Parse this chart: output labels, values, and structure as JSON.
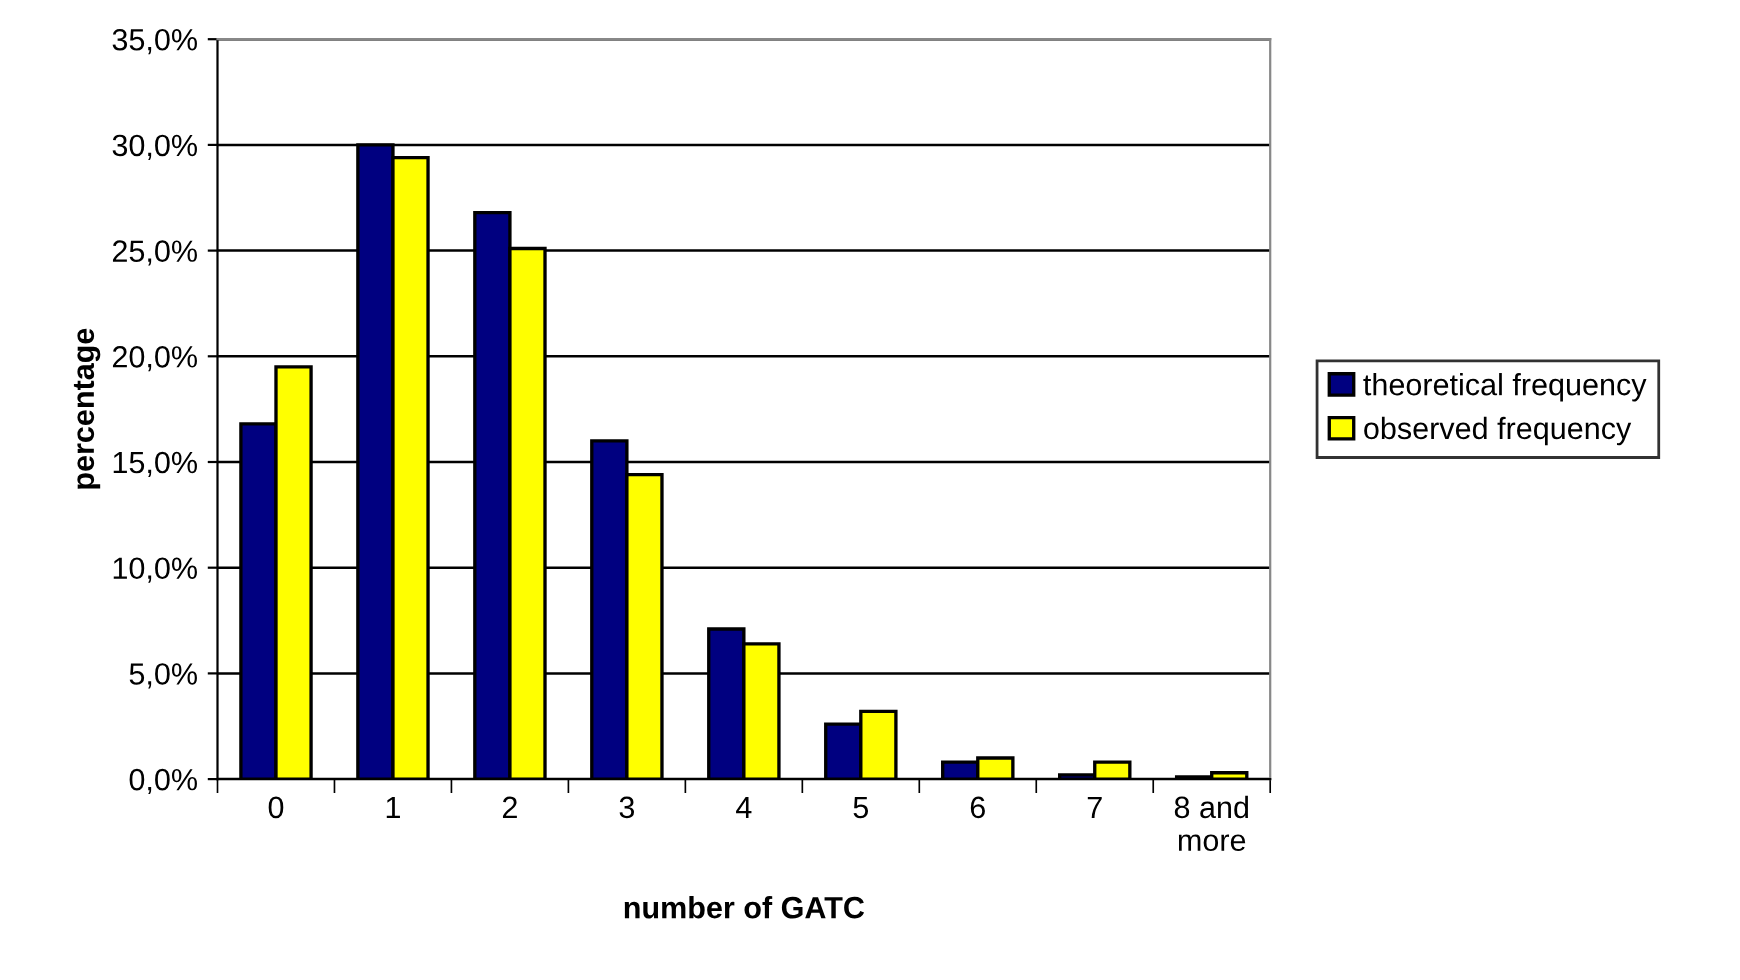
{
  "chart_data": {
    "type": "bar",
    "xlabel": "number of GATC",
    "ylabel": "percentage",
    "categories": [
      "0",
      "1",
      "2",
      "3",
      "4",
      "5",
      "6",
      "7",
      "8 and\nmore"
    ],
    "series": [
      {
        "name": "theoretical frequency",
        "color": "#000080",
        "values": [
          16.8,
          30.0,
          26.8,
          16.0,
          7.1,
          2.6,
          0.8,
          0.2,
          0.1
        ]
      },
      {
        "name": "observed frequency",
        "color": "#ffff00",
        "values": [
          19.5,
          29.4,
          25.1,
          14.4,
          6.4,
          3.2,
          1.0,
          0.8,
          0.3
        ]
      }
    ],
    "ylim": [
      0,
      35
    ],
    "yticks": [
      {
        "value": 0,
        "label": "0,0%"
      },
      {
        "value": 5,
        "label": "5,0%"
      },
      {
        "value": 10,
        "label": "10,0%"
      },
      {
        "value": 15,
        "label": "15,0%"
      },
      {
        "value": 20,
        "label": "20,0%"
      },
      {
        "value": 25,
        "label": "25,0%"
      },
      {
        "value": 30,
        "label": "30,0%"
      },
      {
        "value": 35,
        "label": "35,0%"
      }
    ],
    "grid": "y",
    "legend": "right"
  }
}
